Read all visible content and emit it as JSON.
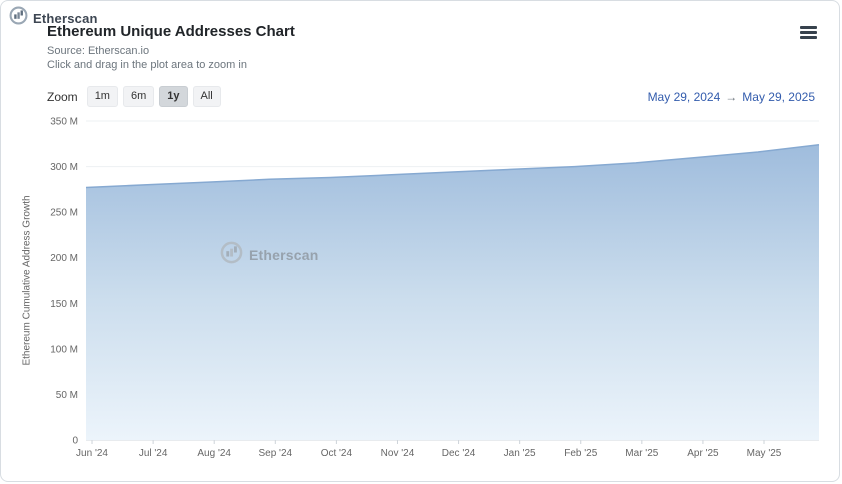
{
  "brand": {
    "name": "Etherscan"
  },
  "header": {
    "title": "Ethereum Unique Addresses Chart",
    "source": "Source: Etherscan.io",
    "hint": "Click and drag in the plot area to zoom in"
  },
  "zoom": {
    "label": "Zoom",
    "buttons": [
      "1m",
      "6m",
      "1y",
      "All"
    ],
    "selected": "1y"
  },
  "date_range": {
    "from": "May 29, 2024",
    "arrow": "→",
    "to": "May 29, 2025"
  },
  "watermark": "Etherscan",
  "colors": {
    "accent_blue": "#335cad",
    "axis_text": "#666666",
    "title_text": "#212529"
  },
  "chart_data": {
    "type": "area",
    "title": "Ethereum Unique Addresses Chart",
    "xlabel": "",
    "ylabel": "Ethereum Cumulative Address Growth",
    "x_ticks": [
      "Jun '24",
      "Jul '24",
      "Aug '24",
      "Sep '24",
      "Oct '24",
      "Nov '24",
      "Dec '24",
      "Jan '25",
      "Feb '25",
      "Mar '25",
      "Apr '25",
      "May '25"
    ],
    "x_range": [
      "May 29, 2024",
      "May 29, 2025"
    ],
    "values": [
      277,
      280,
      283,
      286,
      288,
      291,
      294,
      297,
      300,
      304,
      310,
      316,
      324
    ],
    "value_unit": "M",
    "ylim": [
      0,
      350
    ],
    "yticks": [
      0,
      50,
      100,
      150,
      200,
      250,
      300,
      350
    ],
    "grid": true,
    "legend": false,
    "line_color": "#86a9d1",
    "fill_top": "#98b7da",
    "fill_mid": "#cbdded",
    "fill_bottom": "#ecf4fb"
  }
}
